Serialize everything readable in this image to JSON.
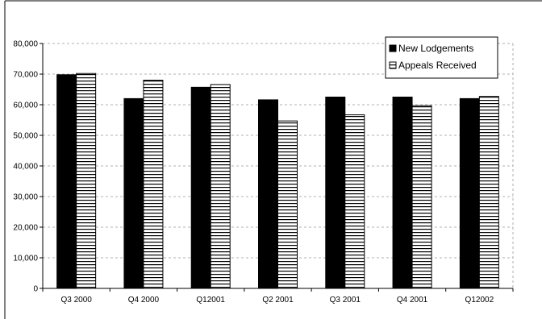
{
  "chart_data": {
    "type": "bar",
    "categories": [
      "Q3 2000",
      "Q4 2000",
      "Q12001",
      "Q2 2001",
      "Q3 2001",
      "Q4 2001",
      "Q12002"
    ],
    "series": [
      {
        "name": "New Lodgements",
        "values": [
          69800,
          62000,
          65700,
          61600,
          62500,
          62500,
          62000
        ],
        "fill": "solid"
      },
      {
        "name": "Appeals Received",
        "values": [
          70200,
          68000,
          66600,
          54700,
          56700,
          59700,
          62700
        ],
        "fill": "horizontal-stripes"
      }
    ],
    "title": "",
    "xlabel": "",
    "ylabel": "",
    "ylim": [
      0,
      80000
    ],
    "yticks": [
      0,
      10000,
      20000,
      30000,
      40000,
      50000,
      60000,
      70000,
      80000
    ],
    "ytick_labels": [
      "0",
      "10,000",
      "20,000",
      "30,000",
      "40,000",
      "50,000",
      "60,000",
      "70,000",
      "80,000"
    ],
    "grid": "horizontal dashed",
    "legend": "top-right",
    "colors": {
      "solid": "#000000",
      "stripe": "#000000",
      "background": "#ffffff"
    }
  }
}
